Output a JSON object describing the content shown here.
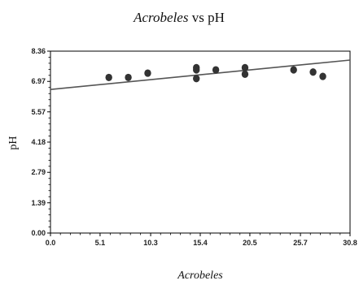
{
  "chart_data": {
    "type": "scatter",
    "title_italic": "Acrobeles",
    "title_rest": " vs pH",
    "xlabel": "Acrobeles",
    "ylabel": "pH",
    "xlim": [
      0.0,
      30.8
    ],
    "ylim": [
      0.0,
      8.36
    ],
    "x_ticks": [
      "0.0",
      "5.1",
      "10.3",
      "15.4",
      "20.5",
      "25.7",
      "30.8"
    ],
    "x_tick_values": [
      0.0,
      5.1,
      10.3,
      15.4,
      20.5,
      25.7,
      30.8
    ],
    "y_ticks": [
      "0.00",
      "1.39",
      "2.79",
      "4.18",
      "5.57",
      "6.97",
      "8.36"
    ],
    "y_tick_values": [
      0.0,
      1.39,
      2.79,
      4.18,
      5.57,
      6.97,
      8.36
    ],
    "points": [
      {
        "x": 6.0,
        "y": 7.15
      },
      {
        "x": 8.0,
        "y": 7.15
      },
      {
        "x": 10.0,
        "y": 7.35
      },
      {
        "x": 15.0,
        "y": 7.6
      },
      {
        "x": 15.0,
        "y": 7.5
      },
      {
        "x": 15.0,
        "y": 7.1
      },
      {
        "x": 17.0,
        "y": 7.5
      },
      {
        "x": 20.0,
        "y": 7.6
      },
      {
        "x": 20.0,
        "y": 7.3
      },
      {
        "x": 25.0,
        "y": 7.5
      },
      {
        "x": 27.0,
        "y": 7.4
      },
      {
        "x": 28.0,
        "y": 7.2
      }
    ],
    "fit_line": {
      "x": [
        0.0,
        30.8
      ],
      "y": [
        6.6,
        7.95
      ]
    },
    "grid": false,
    "legend": "none"
  }
}
